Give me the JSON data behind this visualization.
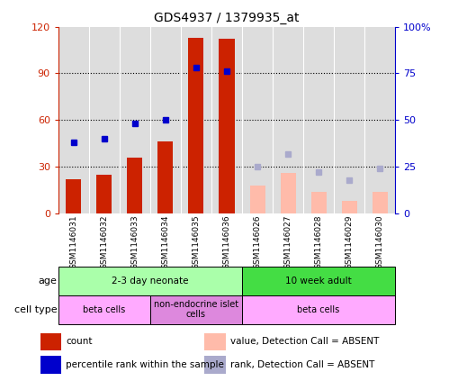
{
  "title": "GDS4937 / 1379935_at",
  "samples": [
    "GSM1146031",
    "GSM1146032",
    "GSM1146033",
    "GSM1146034",
    "GSM1146035",
    "GSM1146036",
    "GSM1146026",
    "GSM1146027",
    "GSM1146028",
    "GSM1146029",
    "GSM1146030"
  ],
  "bar_values": [
    22,
    25,
    36,
    46,
    113,
    112,
    null,
    null,
    null,
    null,
    null
  ],
  "bar_values_absent": [
    null,
    null,
    null,
    null,
    null,
    null,
    18,
    26,
    14,
    8,
    14
  ],
  "rank_values": [
    38,
    40,
    48,
    50,
    78,
    76,
    null,
    null,
    null,
    null,
    null
  ],
  "rank_values_absent": [
    null,
    null,
    null,
    null,
    null,
    null,
    25,
    32,
    22,
    18,
    24
  ],
  "bar_color": "#cc2200",
  "bar_color_absent": "#ffbbaa",
  "rank_color": "#0000cc",
  "rank_color_absent": "#aaaacc",
  "ylim_left": [
    0,
    120
  ],
  "ylim_right": [
    0,
    100
  ],
  "yticks_left": [
    0,
    30,
    60,
    90,
    120
  ],
  "ytick_labels_left": [
    "0",
    "30",
    "60",
    "90",
    "120"
  ],
  "yticks_right": [
    0,
    25,
    50,
    75,
    100
  ],
  "ytick_labels_right": [
    "0",
    "25",
    "50",
    "75",
    "100%"
  ],
  "age_groups": [
    {
      "label": "2-3 day neonate",
      "start": 0,
      "end": 6,
      "color": "#aaffaa"
    },
    {
      "label": "10 week adult",
      "start": 6,
      "end": 11,
      "color": "#44dd44"
    }
  ],
  "cell_type_groups": [
    {
      "label": "beta cells",
      "start": 0,
      "end": 3,
      "color": "#ffaaff"
    },
    {
      "label": "non-endocrine islet\ncells",
      "start": 3,
      "end": 6,
      "color": "#dd88dd"
    },
    {
      "label": "beta cells",
      "start": 6,
      "end": 11,
      "color": "#ffaaff"
    }
  ],
  "legend_items": [
    {
      "label": "count",
      "color": "#cc2200"
    },
    {
      "label": "percentile rank within the sample",
      "color": "#0000cc"
    },
    {
      "label": "value, Detection Call = ABSENT",
      "color": "#ffbbaa"
    },
    {
      "label": "rank, Detection Call = ABSENT",
      "color": "#aaaacc"
    }
  ],
  "background_color": "#ffffff",
  "plot_bg": "#dddddd",
  "dotted_lines": [
    30,
    60,
    90
  ]
}
